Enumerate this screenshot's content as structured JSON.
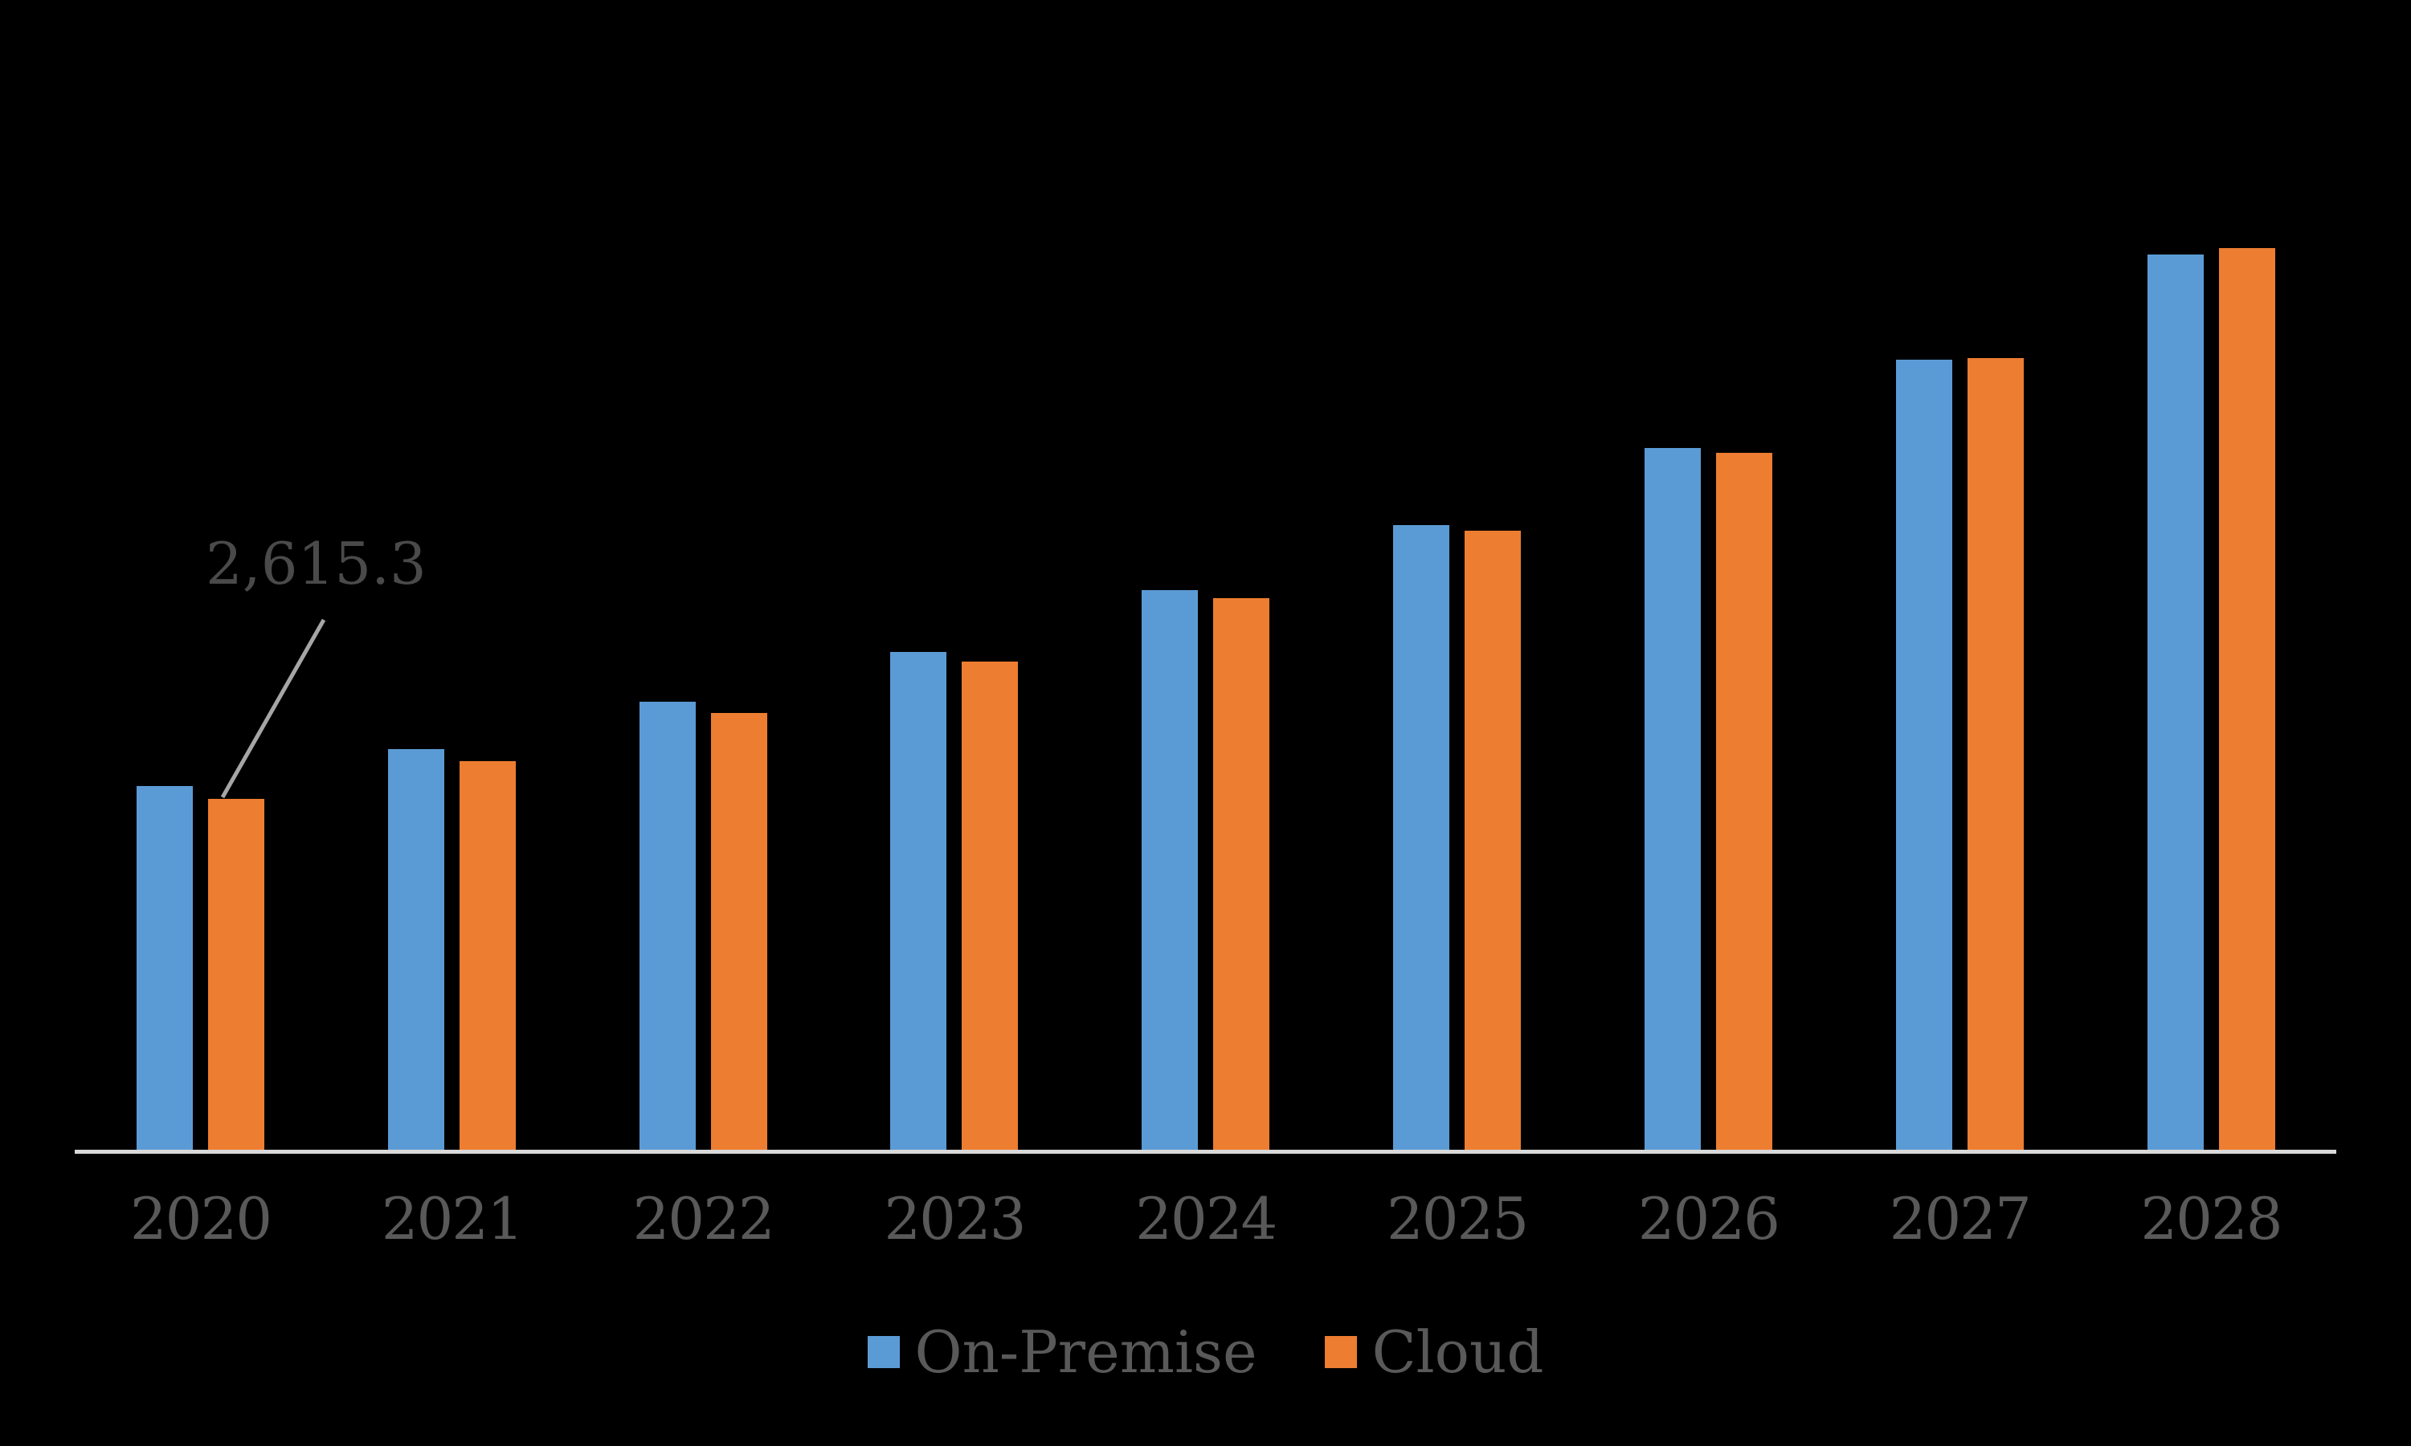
{
  "chart_data": {
    "type": "bar",
    "title": "",
    "xlabel": "",
    "ylabel": "",
    "categories": [
      "2020",
      "2021",
      "2022",
      "2023",
      "2024",
      "2025",
      "2026",
      "2027",
      "2028"
    ],
    "series": [
      {
        "name": "On-Premise",
        "color": "#5B9BD5",
        "values": [
          2711.2,
          2986.4,
          3340.1,
          3710.8,
          4172.3,
          4656.0,
          5231.1,
          5889.2,
          6673.4
        ]
      },
      {
        "name": "Cloud",
        "color": "#ED7D31",
        "values": [
          2615.3,
          2896.7,
          3255.9,
          3639.0,
          4112.1,
          4614.2,
          5194.8,
          5901.0,
          6721.3
        ]
      }
    ],
    "ylim": [
      0,
      7000
    ],
    "grid": false,
    "y_axis_visible": false,
    "legend_position": "bottom",
    "annotation": {
      "text": "2,615.3",
      "series": "Cloud",
      "category": "2020"
    }
  },
  "annotation": {
    "label": "2,615.3"
  },
  "legend": {
    "items": [
      {
        "label": "On-Premise",
        "color": "#5B9BD5"
      },
      {
        "label": "Cloud",
        "color": "#ED7D31"
      }
    ]
  },
  "colors": {
    "background": "#000000",
    "axis_line": "#D9D9D9",
    "tick_label": "#595959",
    "annotation_text": "#4A4A4A",
    "leader_line": "#A6A6A6"
  }
}
